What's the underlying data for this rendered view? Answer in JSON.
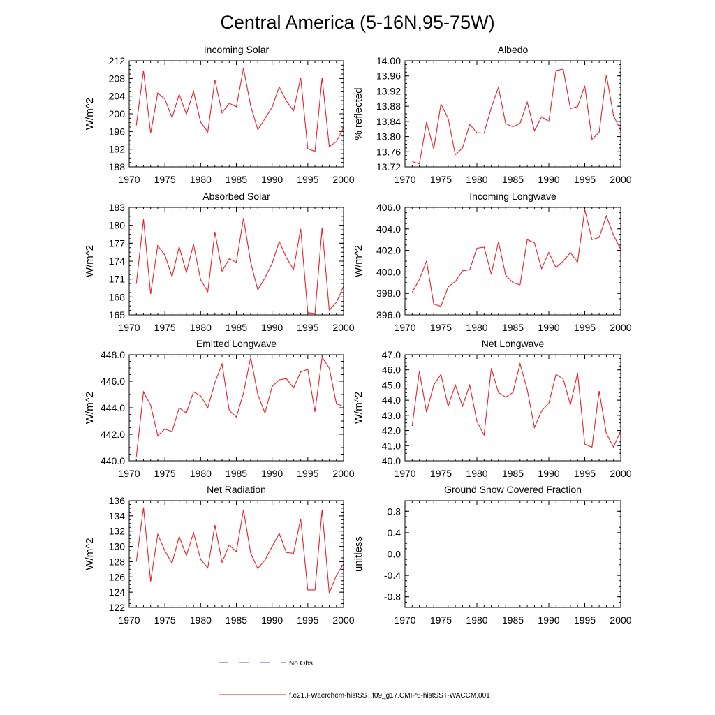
{
  "figure": {
    "title": "Central America (5-16N,95-75W)",
    "legend": [
      {
        "label": "No Obs",
        "style": "dashed",
        "color": "#4a5ea8"
      },
      {
        "label": "f.e21.FWaerchem-histSST.f09_g17.CMIP6-histSST-WACCM.001",
        "style": "solid",
        "color": "#e8202a"
      }
    ]
  },
  "chart_data": [
    {
      "type": "line",
      "title": "Incoming Solar",
      "ylabel": "W/m^2",
      "xlim": [
        1970,
        2000
      ],
      "ylim": [
        188,
        212
      ],
      "xticks": [
        "1970",
        "1975",
        "1980",
        "1985",
        "1990",
        "1995",
        "2000"
      ],
      "yticks": [
        "188",
        "192",
        "196",
        "200",
        "204",
        "208",
        "212"
      ],
      "series": [
        {
          "color": "#e8202a",
          "x": [
            1971,
            1972,
            1973,
            1974,
            1975,
            1976,
            1977,
            1978,
            1979,
            1980,
            1981,
            1982,
            1983,
            1984,
            1985,
            1986,
            1987,
            1988,
            1989,
            1990,
            1991,
            1992,
            1993,
            1994,
            1995,
            1996,
            1997,
            1998,
            1999,
            2000
          ],
          "y": [
            197.4,
            209.8,
            195.6,
            204.7,
            203.3,
            199.1,
            204.4,
            199.9,
            205.1,
            198.1,
            195.9,
            207.7,
            200.2,
            202.4,
            201.6,
            210.3,
            201.8,
            196.4,
            198.9,
            201.5,
            206.1,
            202.9,
            200.7,
            208.2,
            192.1,
            191.5,
            208.2,
            192.6,
            193.7,
            196.9
          ]
        }
      ]
    },
    {
      "type": "line",
      "title": "Albedo",
      "ylabel": "% reflected",
      "xlim": [
        1970,
        2000
      ],
      "ylim": [
        13.72,
        14.0
      ],
      "xticks": [
        "1970",
        "1975",
        "1980",
        "1985",
        "1990",
        "1995",
        "2000"
      ],
      "yticks": [
        "13.72",
        "13.76",
        "13.80",
        "13.84",
        "13.88",
        "13.92",
        "13.96",
        "14.00"
      ],
      "series": [
        {
          "color": "#e8202a",
          "x": [
            1971,
            1972,
            1973,
            1974,
            1975,
            1976,
            1977,
            1978,
            1979,
            1980,
            1981,
            1982,
            1983,
            1984,
            1985,
            1986,
            1987,
            1988,
            1989,
            1990,
            1991,
            1992,
            1993,
            1994,
            1995,
            1996,
            1997,
            1998,
            1999,
            2000
          ],
          "y": [
            13.734,
            13.728,
            13.838,
            13.767,
            13.886,
            13.848,
            13.752,
            13.77,
            13.832,
            13.81,
            13.809,
            13.876,
            13.93,
            13.834,
            13.826,
            13.835,
            13.891,
            13.815,
            13.852,
            13.84,
            13.974,
            13.978,
            13.874,
            13.879,
            13.934,
            13.793,
            13.811,
            13.963,
            13.855,
            13.816
          ]
        }
      ]
    },
    {
      "type": "line",
      "title": "Absorbed Solar",
      "ylabel": "W/m^2",
      "xlim": [
        1970,
        2000
      ],
      "ylim": [
        165,
        183
      ],
      "xticks": [
        "1970",
        "1975",
        "1980",
        "1985",
        "1990",
        "1995",
        "2000"
      ],
      "yticks": [
        "165",
        "168",
        "171",
        "174",
        "177",
        "180",
        "183"
      ],
      "series": [
        {
          "color": "#e8202a",
          "x": [
            1971,
            1972,
            1973,
            1974,
            1975,
            1976,
            1977,
            1978,
            1979,
            1980,
            1981,
            1982,
            1983,
            1984,
            1985,
            1986,
            1987,
            1988,
            1989,
            1990,
            1991,
            1992,
            1993,
            1994,
            1995,
            1996,
            1997,
            1998,
            1999,
            2000
          ],
          "y": [
            170.2,
            181.0,
            168.5,
            176.6,
            175.0,
            171.4,
            176.4,
            172.1,
            176.8,
            170.9,
            168.9,
            178.9,
            172.3,
            174.4,
            173.8,
            181.2,
            173.8,
            169.2,
            171.2,
            173.6,
            177.3,
            174.6,
            172.6,
            179.4,
            165.4,
            165.2,
            179.6,
            165.8,
            167.1,
            169.8
          ]
        }
      ]
    },
    {
      "type": "line",
      "title": "Incoming Longwave",
      "ylabel": "W/m^2",
      "xlim": [
        1970,
        2000
      ],
      "ylim": [
        396.0,
        406.0
      ],
      "xticks": [
        "1970",
        "1975",
        "1980",
        "1985",
        "1990",
        "1995",
        "2000"
      ],
      "yticks": [
        "396.0",
        "398.0",
        "400.0",
        "402.0",
        "404.0",
        "406.0"
      ],
      "series": [
        {
          "color": "#e8202a",
          "x": [
            1971,
            1972,
            1973,
            1974,
            1975,
            1976,
            1977,
            1978,
            1979,
            1980,
            1981,
            1982,
            1983,
            1984,
            1985,
            1986,
            1987,
            1988,
            1989,
            1990,
            1991,
            1992,
            1993,
            1994,
            1995,
            1996,
            1997,
            1998,
            1999,
            2000
          ],
          "y": [
            398.1,
            399.3,
            401.0,
            397.0,
            396.8,
            398.6,
            399.1,
            400.1,
            400.2,
            402.2,
            402.3,
            399.8,
            402.8,
            399.7,
            399.0,
            398.8,
            403.0,
            402.7,
            400.3,
            401.8,
            400.4,
            401.0,
            401.8,
            400.9,
            405.8,
            403.0,
            403.2,
            405.2,
            403.4,
            402.1
          ]
        }
      ]
    },
    {
      "type": "line",
      "title": "Emitted Longwave",
      "ylabel": "W/m^2",
      "xlim": [
        1970,
        2000
      ],
      "ylim": [
        440.0,
        448.0
      ],
      "xticks": [
        "1970",
        "1975",
        "1980",
        "1985",
        "1990",
        "1995",
        "2000"
      ],
      "yticks": [
        "440.0",
        "442.0",
        "444.0",
        "446.0",
        "448.0"
      ],
      "series": [
        {
          "color": "#e8202a",
          "x": [
            1971,
            1972,
            1973,
            1974,
            1975,
            1976,
            1977,
            1978,
            1979,
            1980,
            1981,
            1982,
            1983,
            1984,
            1985,
            1986,
            1987,
            1988,
            1989,
            1990,
            1991,
            1992,
            1993,
            1994,
            1995,
            1996,
            1997,
            1998,
            1999,
            2000
          ],
          "y": [
            440.3,
            445.2,
            444.2,
            441.9,
            442.4,
            442.2,
            444.0,
            443.6,
            445.2,
            444.9,
            444.0,
            445.9,
            447.3,
            443.8,
            443.3,
            445.1,
            447.8,
            445.0,
            443.6,
            445.6,
            446.1,
            446.2,
            445.5,
            446.7,
            446.9,
            443.7,
            447.8,
            447.0,
            444.3,
            444.1
          ]
        }
      ]
    },
    {
      "type": "line",
      "title": "Net Longwave",
      "ylabel": "W/m^2",
      "xlim": [
        1970,
        2000
      ],
      "ylim": [
        40.0,
        47.0
      ],
      "xticks": [
        "1970",
        "1975",
        "1980",
        "1985",
        "1990",
        "1995",
        "2000"
      ],
      "yticks": [
        "40.0",
        "41.0",
        "42.0",
        "43.0",
        "44.0",
        "45.0",
        "46.0",
        "47.0"
      ],
      "series": [
        {
          "color": "#e8202a",
          "x": [
            1971,
            1972,
            1973,
            1974,
            1975,
            1976,
            1977,
            1978,
            1979,
            1980,
            1981,
            1982,
            1983,
            1984,
            1985,
            1986,
            1987,
            1988,
            1989,
            1990,
            1991,
            1992,
            1993,
            1994,
            1995,
            1996,
            1997,
            1998,
            1999,
            2000
          ],
          "y": [
            42.3,
            45.9,
            43.2,
            45.0,
            45.7,
            43.6,
            45.0,
            43.6,
            45.0,
            42.6,
            41.7,
            46.1,
            44.5,
            44.2,
            44.5,
            46.4,
            44.7,
            42.2,
            43.3,
            43.8,
            45.7,
            45.4,
            43.7,
            45.8,
            41.1,
            40.9,
            44.6,
            41.8,
            40.9,
            42.0
          ]
        }
      ]
    },
    {
      "type": "line",
      "title": "Net Radiation",
      "ylabel": "W/m^2",
      "xlim": [
        1970,
        2000
      ],
      "ylim": [
        122,
        136
      ],
      "xticks": [
        "1970",
        "1975",
        "1980",
        "1985",
        "1990",
        "1995",
        "2000"
      ],
      "yticks": [
        "122",
        "124",
        "126",
        "128",
        "130",
        "132",
        "134",
        "136"
      ],
      "series": [
        {
          "color": "#e8202a",
          "x": [
            1971,
            1972,
            1973,
            1974,
            1975,
            1976,
            1977,
            1978,
            1979,
            1980,
            1981,
            1982,
            1983,
            1984,
            1985,
            1986,
            1987,
            1988,
            1989,
            1990,
            1991,
            1992,
            1993,
            1994,
            1995,
            1996,
            1997,
            1998,
            1999,
            2000
          ],
          "y": [
            128.0,
            135.1,
            125.4,
            131.6,
            129.4,
            127.8,
            131.3,
            128.8,
            131.8,
            128.3,
            127.2,
            132.8,
            127.9,
            130.2,
            129.3,
            134.8,
            129.1,
            127.1,
            128.2,
            130.0,
            131.7,
            129.2,
            129.1,
            133.6,
            124.3,
            124.3,
            134.8,
            123.9,
            126.2,
            127.7
          ]
        }
      ]
    },
    {
      "type": "line",
      "title": "Ground Snow Covered Fraction",
      "ylabel": "unitless",
      "xlim": [
        1970,
        2000
      ],
      "ylim": [
        -1.0,
        1.0
      ],
      "xticks": [
        "1970",
        "1975",
        "1980",
        "1985",
        "1990",
        "1995",
        "2000"
      ],
      "yticks": [
        "-0.8",
        "-0.4",
        "0.0",
        "0.4",
        "0.8"
      ],
      "series": [
        {
          "color": "#e8202a",
          "x": [
            1971,
            1972,
            1973,
            1974,
            1975,
            1976,
            1977,
            1978,
            1979,
            1980,
            1981,
            1982,
            1983,
            1984,
            1985,
            1986,
            1987,
            1988,
            1989,
            1990,
            1991,
            1992,
            1993,
            1994,
            1995,
            1996,
            1997,
            1998,
            1999,
            2000
          ],
          "y": [
            0,
            0,
            0,
            0,
            0,
            0,
            0,
            0,
            0,
            0,
            0,
            0,
            0,
            0,
            0,
            0,
            0,
            0,
            0,
            0,
            0,
            0,
            0,
            0,
            0,
            0,
            0,
            0,
            0,
            0
          ]
        }
      ]
    }
  ]
}
